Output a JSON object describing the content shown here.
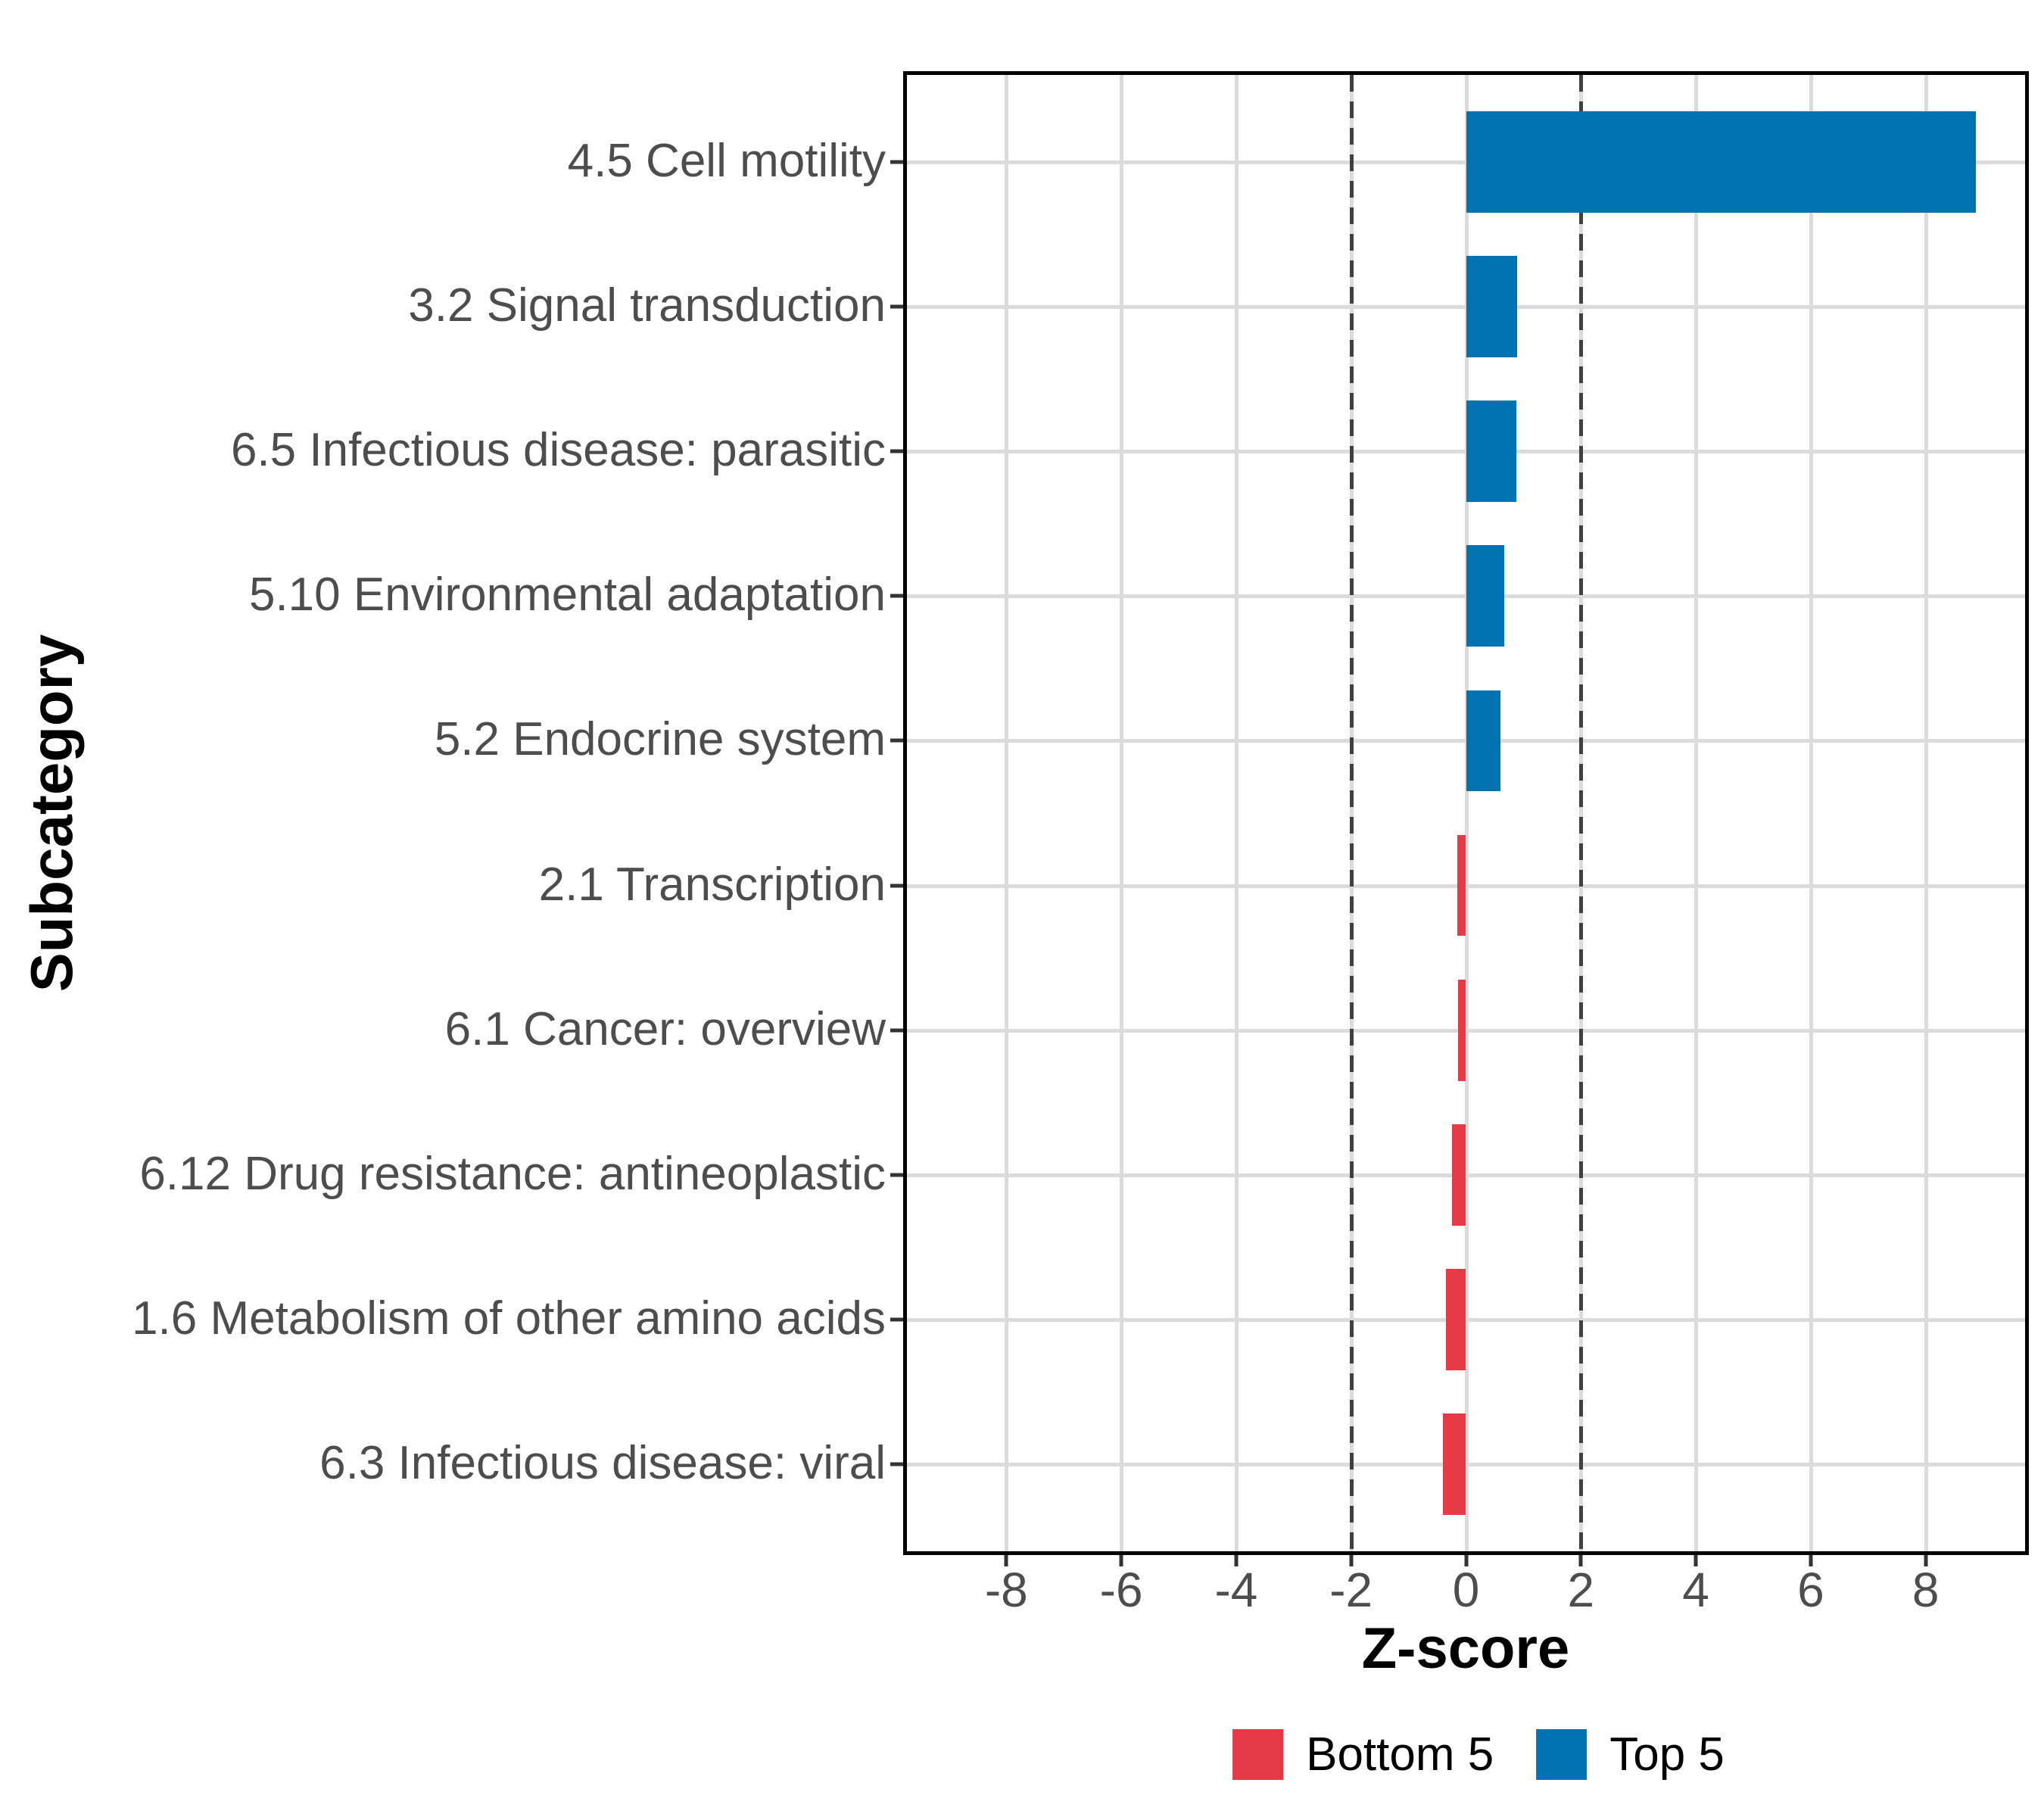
{
  "chart_data": {
    "type": "bar",
    "orientation": "horizontal",
    "title": "",
    "xlabel": "Z-score",
    "ylabel": "Subcategory",
    "categories": [
      "4.5 Cell motility",
      "3.2 Signal transduction",
      "6.5 Infectious disease: parasitic",
      "5.10 Environmental adaptation",
      "5.2 Endocrine system",
      "2.1 Transcription",
      "6.1 Cancer: overview",
      "6.12 Drug resistance: antineoplastic",
      "1.6 Metabolism of other amino acids",
      "6.3 Infectious disease: viral"
    ],
    "values": [
      8.87,
      0.89,
      0.87,
      0.66,
      0.6,
      -0.15,
      -0.14,
      -0.25,
      -0.35,
      -0.4
    ],
    "groups": [
      "Top 5",
      "Top 5",
      "Top 5",
      "Top 5",
      "Top 5",
      "Bottom 5",
      "Bottom 5",
      "Bottom 5",
      "Bottom 5",
      "Bottom 5"
    ],
    "x_ticks": [
      -8,
      -6,
      -4,
      -2,
      0,
      2,
      4,
      6,
      8
    ],
    "xlim": [
      -9.73,
      9.73
    ],
    "reference_lines": [
      -2,
      2
    ],
    "bar_width_fraction": 0.7,
    "grid": "major-x-and-category-y",
    "legend_position": "bottom",
    "legend": {
      "items": [
        {
          "label": "Bottom 5",
          "color": "#E63946"
        },
        {
          "label": "Top 5",
          "color": "#0072B2"
        }
      ]
    },
    "colors": {
      "top": "#0072B2",
      "bottom": "#E63946",
      "gridline": "#DBDBDB",
      "refline": "#404040",
      "axis_text": "#4D4D4D",
      "tick_mark": "#333333",
      "panel_border": "#000000",
      "background": "#FFFFFF"
    }
  }
}
